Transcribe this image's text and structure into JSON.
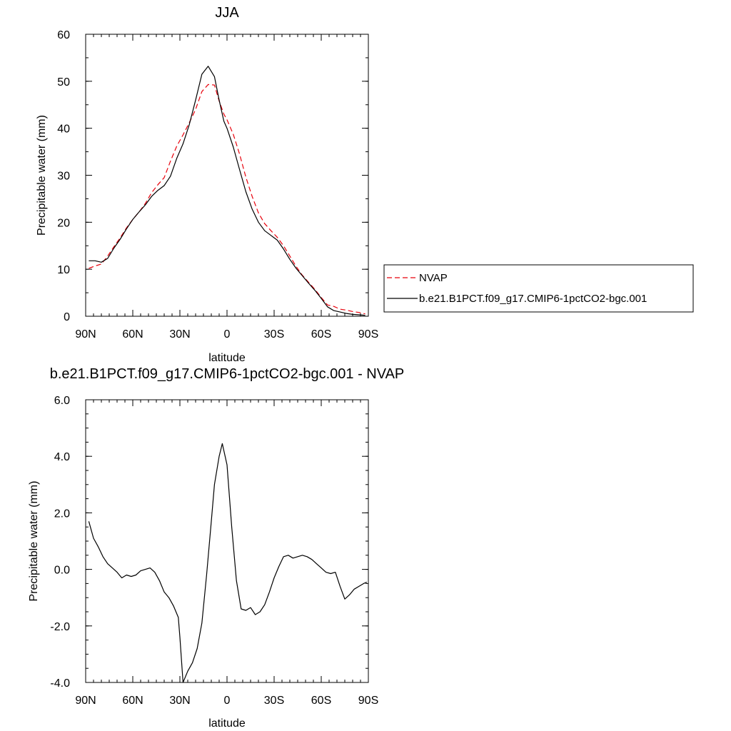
{
  "colors": {
    "nvap": "#e8000b",
    "model": "#000000",
    "axis": "#000000",
    "legend_border": "#000000"
  },
  "chart_data": [
    {
      "type": "line",
      "title": "JJA",
      "xlabel": "latitude",
      "ylabel": "Precipitable water (mm)",
      "xlim": [
        90,
        -90
      ],
      "ylim": [
        0,
        60
      ],
      "x_ticks": [
        {
          "value": 90,
          "label": "90N"
        },
        {
          "value": 60,
          "label": "60N"
        },
        {
          "value": 30,
          "label": "30N"
        },
        {
          "value": 0,
          "label": "0"
        },
        {
          "value": -30,
          "label": "30S"
        },
        {
          "value": -60,
          "label": "60S"
        },
        {
          "value": -90,
          "label": "90S"
        }
      ],
      "y_ticks": [
        {
          "value": 0,
          "label": "0"
        },
        {
          "value": 10,
          "label": "10"
        },
        {
          "value": 20,
          "label": "20"
        },
        {
          "value": 30,
          "label": "30"
        },
        {
          "value": 40,
          "label": "40"
        },
        {
          "value": 50,
          "label": "50"
        },
        {
          "value": 60,
          "label": "60"
        }
      ],
      "grid": false,
      "legend_position": "right",
      "series": [
        {
          "name": "NVAP",
          "style": "dashed",
          "color": "#e8000b",
          "x": [
            88,
            84,
            80,
            76,
            72,
            68,
            64,
            60,
            56,
            52,
            48,
            44,
            40,
            36,
            32,
            28,
            24,
            20,
            16,
            12,
            8,
            5,
            2,
            0,
            -4,
            -8,
            -12,
            -16,
            -20,
            -24,
            -28,
            -32,
            -36,
            -40,
            -44,
            -48,
            -52,
            -56,
            -60,
            -64,
            -68,
            -72,
            -76,
            -80,
            -84,
            -88
          ],
          "y": [
            10.2,
            10.7,
            11.1,
            12.8,
            14.8,
            16.7,
            18.8,
            20.6,
            22.2,
            24.0,
            26.3,
            28.0,
            29.5,
            33.0,
            36.2,
            38.6,
            41.2,
            44.0,
            47.8,
            49.3,
            49.2,
            45.8,
            43.0,
            41.8,
            38.7,
            34.5,
            29.6,
            25.5,
            22.0,
            19.7,
            18.2,
            16.8,
            15.0,
            12.8,
            10.6,
            8.7,
            7.2,
            5.7,
            4.0,
            2.4,
            2.1,
            1.5,
            1.3,
            1.0,
            0.8,
            0.5
          ]
        },
        {
          "name": "b.e21.B1PCT.f09_g17.CMIP6-1pctCO2-bgc.001",
          "style": "solid",
          "color": "#000000",
          "x": [
            88,
            84,
            80,
            76,
            72,
            68,
            64,
            60,
            56,
            52,
            48,
            44,
            40,
            36,
            32,
            28,
            24,
            20,
            16,
            12,
            8,
            5,
            2,
            0,
            -4,
            -8,
            -12,
            -16,
            -20,
            -24,
            -28,
            -32,
            -36,
            -40,
            -44,
            -48,
            -52,
            -56,
            -60,
            -64,
            -68,
            -72,
            -76,
            -80,
            -84,
            -88
          ],
          "y": [
            11.8,
            11.8,
            11.5,
            12.3,
            14.5,
            16.4,
            18.6,
            20.6,
            22.2,
            23.7,
            25.5,
            26.8,
            27.8,
            29.8,
            33.6,
            36.7,
            40.8,
            46.0,
            51.5,
            53.2,
            51.0,
            46.0,
            41.5,
            40.0,
            36.0,
            31.2,
            26.5,
            22.8,
            20.0,
            18.2,
            17.2,
            16.2,
            14.3,
            12.1,
            10.2,
            8.6,
            7.0,
            5.5,
            3.8,
            2.0,
            1.2,
            0.9,
            0.6,
            0.4,
            0.3,
            0.2
          ]
        }
      ]
    },
    {
      "type": "line",
      "title": "b.e21.B1PCT.f09_g17.CMIP6-1pctCO2-bgc.001 - NVAP",
      "xlabel": "latitude",
      "ylabel": "Precipitable water (mm)",
      "xlim": [
        90,
        -90
      ],
      "ylim": [
        -4,
        6
      ],
      "x_ticks": [
        {
          "value": 90,
          "label": "90N"
        },
        {
          "value": 60,
          "label": "60N"
        },
        {
          "value": 30,
          "label": "30N"
        },
        {
          "value": 0,
          "label": "0"
        },
        {
          "value": -30,
          "label": "30S"
        },
        {
          "value": -60,
          "label": "60S"
        },
        {
          "value": -90,
          "label": "90S"
        }
      ],
      "y_ticks": [
        {
          "value": -4,
          "label": "-4.0"
        },
        {
          "value": -2,
          "label": "-2.0"
        },
        {
          "value": 0,
          "label": "0.0"
        },
        {
          "value": 2,
          "label": "2.0"
        },
        {
          "value": 4,
          "label": "4.0"
        },
        {
          "value": 6,
          "label": "6.0"
        }
      ],
      "grid": false,
      "series": [
        {
          "style": "solid",
          "color": "#000000",
          "x": [
            88,
            85,
            82,
            79,
            76,
            73,
            70,
            67,
            64,
            61,
            58,
            55,
            52,
            49,
            46,
            43,
            40,
            37,
            34,
            31,
            30,
            28,
            25,
            22,
            19,
            16,
            13,
            10,
            8,
            5,
            3,
            0,
            -3,
            -6,
            -9,
            -12,
            -15,
            -18,
            -21,
            -24,
            -27,
            -30,
            -33,
            -36,
            -39,
            -42,
            -45,
            -48,
            -51,
            -54,
            -57,
            -60,
            -63,
            -66,
            -69,
            -72,
            -75,
            -78,
            -81,
            -84,
            -87,
            -89
          ],
          "y": [
            1.7,
            1.1,
            0.8,
            0.45,
            0.2,
            0.05,
            -0.1,
            -0.3,
            -0.2,
            -0.25,
            -0.2,
            -0.05,
            0.0,
            0.05,
            -0.1,
            -0.4,
            -0.8,
            -1.0,
            -1.3,
            -1.7,
            -2.4,
            -4.0,
            -3.6,
            -3.3,
            -2.8,
            -1.9,
            -0.2,
            1.7,
            3.0,
            4.0,
            4.45,
            3.7,
            1.5,
            -0.4,
            -1.4,
            -1.45,
            -1.35,
            -1.6,
            -1.5,
            -1.25,
            -0.8,
            -0.3,
            0.1,
            0.45,
            0.5,
            0.4,
            0.45,
            0.5,
            0.45,
            0.35,
            0.2,
            0.05,
            -0.1,
            -0.15,
            -0.1,
            -0.6,
            -1.05,
            -0.9,
            -0.7,
            -0.6,
            -0.5,
            -0.45
          ]
        }
      ]
    }
  ]
}
